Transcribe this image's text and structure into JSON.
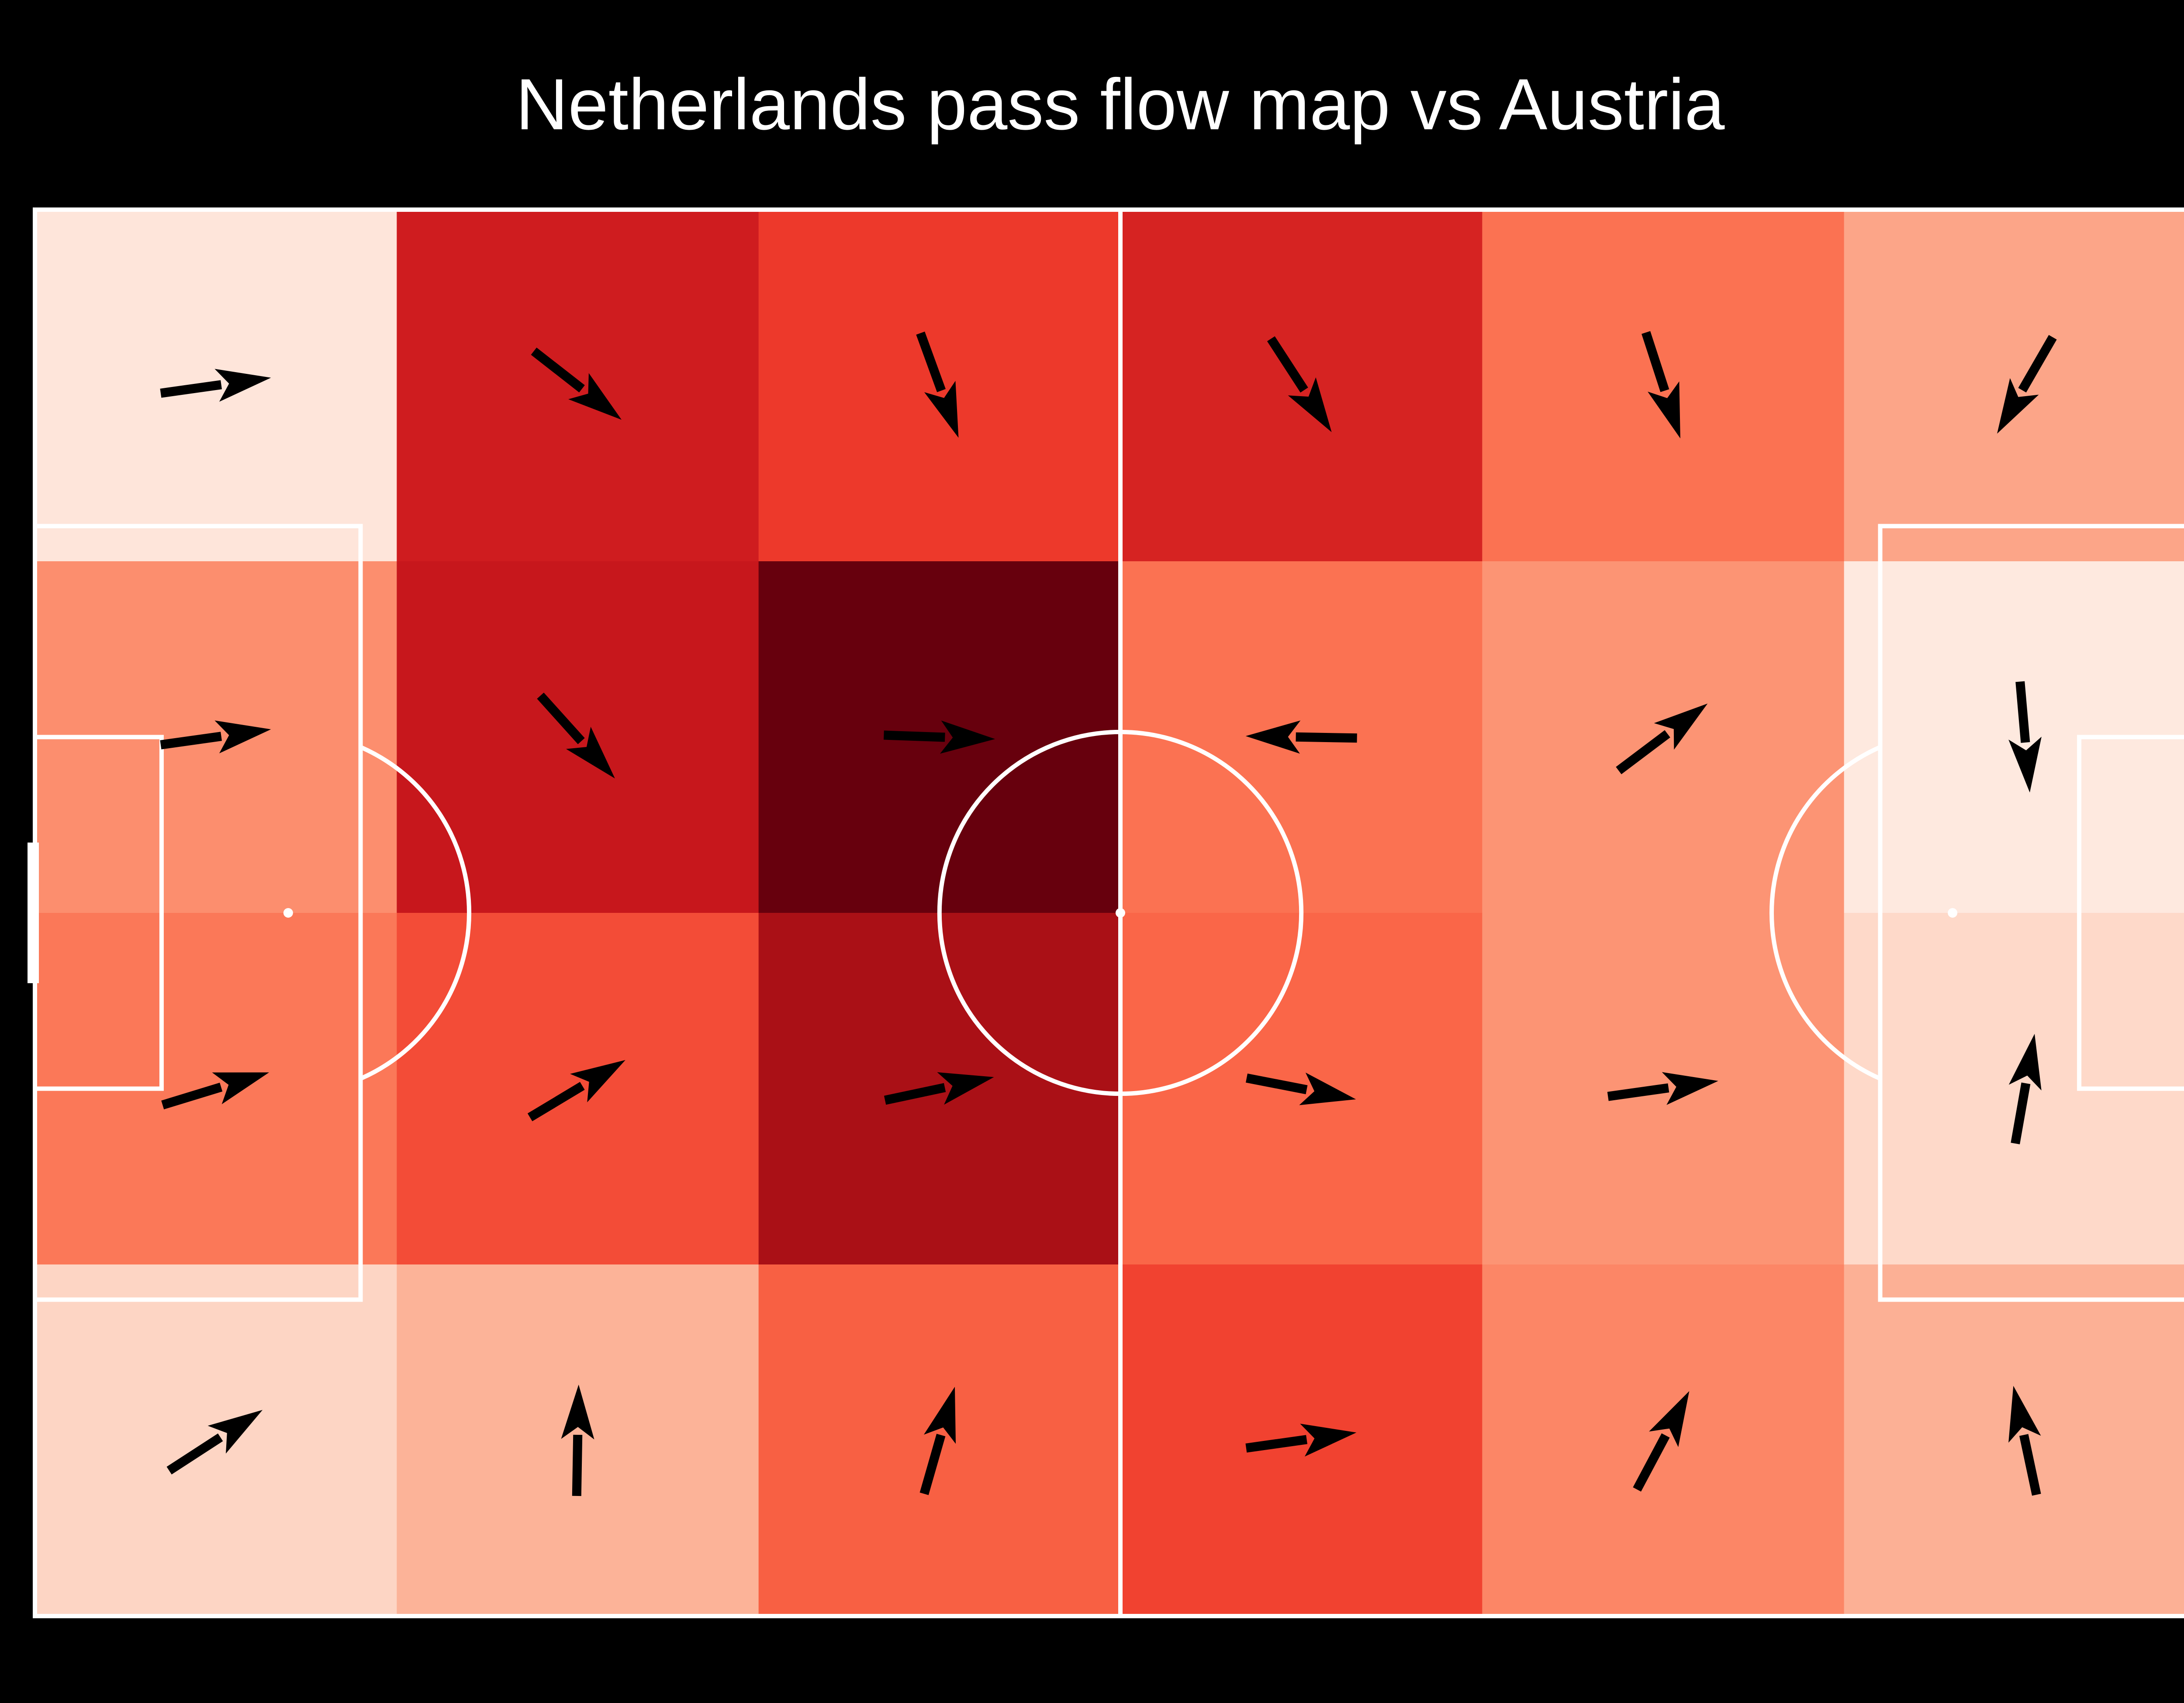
{
  "chart_data": {
    "type": "heatmap",
    "title": "Netherlands pass flow map vs Austria",
    "grid": {
      "columns": 6,
      "rows": 4
    },
    "colormap": [
      "#fff5f0",
      "#fcbba1",
      "#fc9272",
      "#fb6a4a",
      "#ef3b2c",
      "#cb181d",
      "#a50f15",
      "#67000d"
    ],
    "line_color": "#ffffff",
    "arrow_color": "#000000",
    "background": "#000000",
    "intensity": [
      [
        0.04,
        0.7,
        0.58,
        0.67,
        0.4,
        0.22
      ],
      [
        0.3,
        0.73,
        1.0,
        0.4,
        0.28,
        0.03
      ],
      [
        0.38,
        0.52,
        0.84,
        0.44,
        0.28,
        0.07
      ],
      [
        0.08,
        0.17,
        0.46,
        0.55,
        0.33,
        0.18
      ]
    ],
    "flow_angles_deg": [
      [
        -8,
        38,
        70,
        57,
        72,
        120
      ],
      [
        -8,
        48,
        2,
        181,
        -37,
        85
      ],
      [
        -17,
        -31,
        -12,
        11,
        -8,
        -80
      ],
      [
        -33,
        -89,
        -74,
        -8,
        -62,
        -102
      ]
    ]
  }
}
